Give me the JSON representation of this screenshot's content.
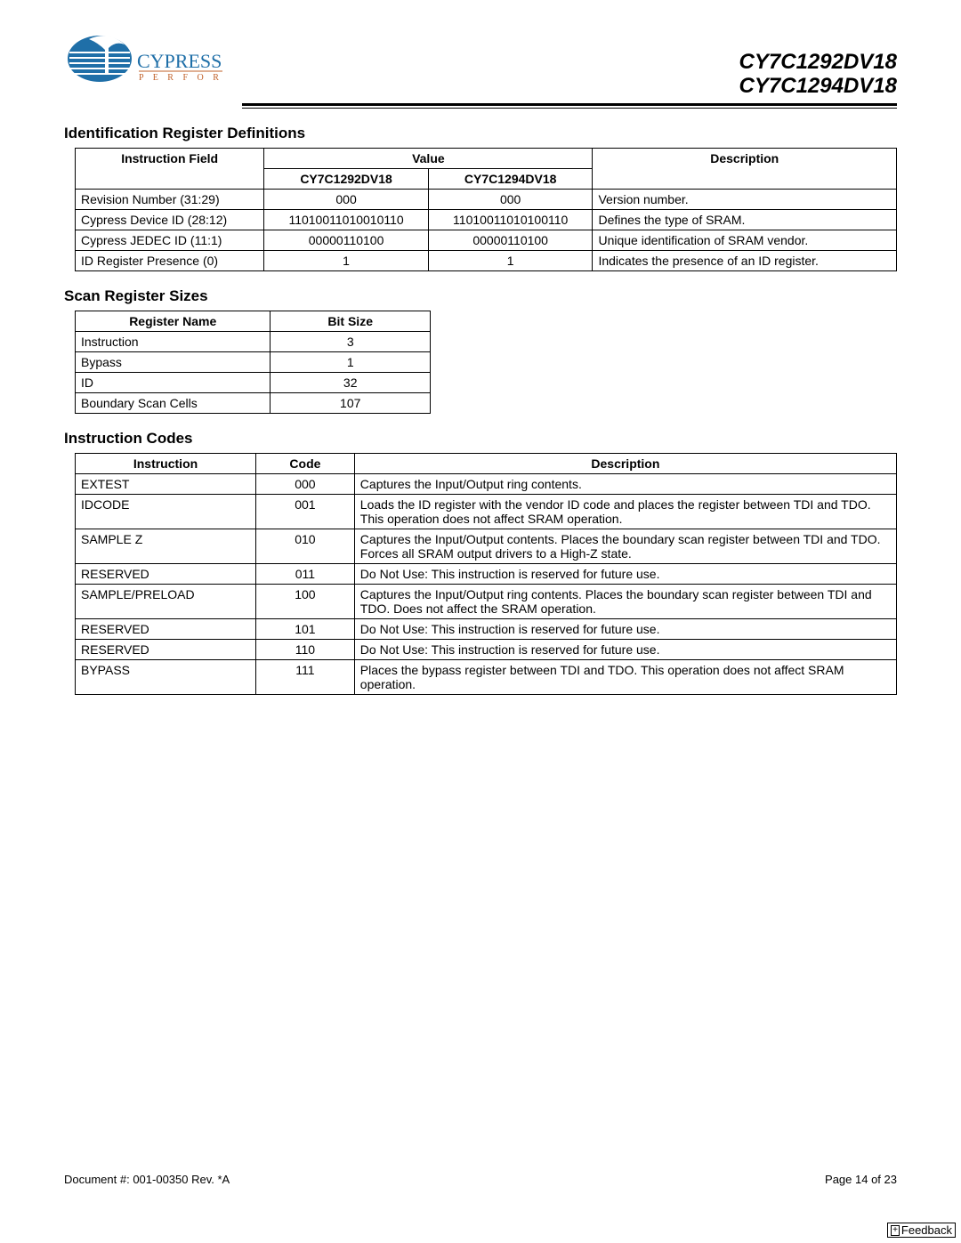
{
  "header": {
    "logo_brand": "CYPRESS",
    "logo_tagline": "P E R F O R M",
    "part1": "CY7C1292DV18",
    "part2": "CY7C1294DV18"
  },
  "sections": {
    "s1_title": "Identification Register Definitions",
    "s2_title": "Scan Register Sizes",
    "s3_title": "Instruction Codes"
  },
  "table1": {
    "h_instruction_field": "Instruction Field",
    "h_value": "Value",
    "h_col1": "CY7C1292DV18",
    "h_col2": "CY7C1294DV18",
    "h_desc": "Description",
    "rows": [
      {
        "field": "Revision Number (31:29)",
        "v1": "000",
        "v2": "000",
        "desc": "Version number."
      },
      {
        "field": "Cypress Device ID (28:12)",
        "v1": "11010011010010110",
        "v2": "11010011010100110",
        "desc": "Defines the type of SRAM."
      },
      {
        "field": "Cypress JEDEC ID (11:1)",
        "v1": "00000110100",
        "v2": "00000110100",
        "desc": "Unique identification of SRAM vendor."
      },
      {
        "field": "ID Register Presence (0)",
        "v1": "1",
        "v2": "1",
        "desc": "Indicates the presence of an ID register."
      }
    ]
  },
  "table2": {
    "h_reg": "Register Name",
    "h_bits": "Bit Size",
    "rows": [
      {
        "name": "Instruction",
        "size": "3"
      },
      {
        "name": "Bypass",
        "size": "1"
      },
      {
        "name": "ID",
        "size": "32"
      },
      {
        "name": "Boundary Scan Cells",
        "size": "107"
      }
    ]
  },
  "table3": {
    "h_instr": "Instruction",
    "h_code": "Code",
    "h_desc": "Description",
    "rows": [
      {
        "instr": "EXTEST",
        "code": "000",
        "desc": "Captures the Input/Output ring contents."
      },
      {
        "instr": "IDCODE",
        "code": "001",
        "desc": "Loads the ID register with the vendor ID code and places the register between TDI and TDO. This operation does not affect SRAM operation."
      },
      {
        "instr": "SAMPLE Z",
        "code": "010",
        "desc": "Captures the Input/Output contents. Places the boundary scan register between TDI and TDO. Forces all SRAM output drivers to a High-Z state."
      },
      {
        "instr": "RESERVED",
        "code": "011",
        "desc": "Do Not Use: This instruction is reserved for future use."
      },
      {
        "instr": "SAMPLE/PRELOAD",
        "code": "100",
        "desc": "Captures the Input/Output ring contents. Places the boundary scan register between TDI and TDO. Does not affect the SRAM operation."
      },
      {
        "instr": "RESERVED",
        "code": "101",
        "desc": "Do Not Use: This instruction is reserved for future use."
      },
      {
        "instr": "RESERVED",
        "code": "110",
        "desc": "Do Not Use: This instruction is reserved for future use."
      },
      {
        "instr": "BYPASS",
        "code": "111",
        "desc": "Places the bypass register between TDI and TDO. This operation does not affect SRAM operation."
      }
    ]
  },
  "footer": {
    "doc": "Document #: 001-00350 Rev. *A",
    "page": "Page 14 of 23",
    "feedback": "Feedback"
  }
}
